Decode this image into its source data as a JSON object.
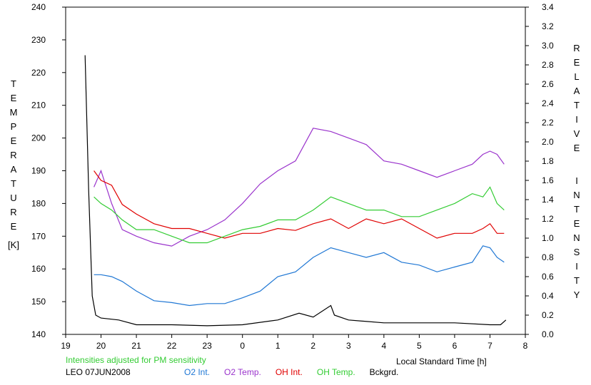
{
  "chart_data": {
    "type": "line",
    "xlabel": "Local Standard Time [h]",
    "ylabel_left_letters": [
      "T",
      "E",
      "M",
      "P",
      "E",
      "R",
      "A",
      "T",
      "U",
      "R",
      "E"
    ],
    "ylabel_left_unit": "[K]",
    "ylabel_right_word1": [
      "R",
      "E",
      "L",
      "A",
      "T",
      "I",
      "V",
      "E"
    ],
    "ylabel_right_word2": [
      "I",
      "N",
      "T",
      "E",
      "N",
      "S",
      "I",
      "T",
      "Y"
    ],
    "x_ticks": [
      "19",
      "20",
      "21",
      "22",
      "23",
      "0",
      "1",
      "2",
      "3",
      "4",
      "5",
      "6",
      "7",
      "8"
    ],
    "y_left_ticks": [
      "140",
      "150",
      "160",
      "170",
      "180",
      "190",
      "200",
      "210",
      "220",
      "230",
      "240"
    ],
    "y_right_ticks": [
      "0.0",
      "0.2",
      "0.4",
      "0.6",
      "0.8",
      "1.0",
      "1.2",
      "1.4",
      "1.6",
      "1.8",
      "2.0",
      "2.2",
      "2.4",
      "2.6",
      "2.8",
      "3.0",
      "3.2",
      "3.4"
    ],
    "xlim": [
      19,
      32
    ],
    "ylim_left": [
      140,
      240
    ],
    "ylim_right": [
      0,
      3.4
    ],
    "grid": false,
    "note": "Intensities adjusted for PM sensitivity",
    "station_date": "LEO 07JUN2008",
    "legend_position": "bottom",
    "series": [
      {
        "name": "O2 Int.",
        "color": "#1f77d4",
        "axis": "right",
        "x": [
          19.8,
          20.0,
          20.3,
          20.6,
          21.0,
          21.5,
          22.0,
          22.5,
          23.0,
          23.5,
          24.0,
          24.5,
          25.0,
          25.5,
          26.0,
          26.5,
          27.0,
          27.5,
          28.0,
          28.5,
          29.0,
          29.5,
          30.0,
          30.5,
          30.8,
          31.0,
          31.2,
          31.4
        ],
        "y": [
          0.62,
          0.62,
          0.6,
          0.55,
          0.45,
          0.35,
          0.33,
          0.3,
          0.32,
          0.32,
          0.38,
          0.45,
          0.6,
          0.65,
          0.8,
          0.9,
          0.85,
          0.8,
          0.85,
          0.75,
          0.72,
          0.65,
          0.7,
          0.75,
          0.92,
          0.9,
          0.8,
          0.75
        ]
      },
      {
        "name": "O2 Temp.",
        "color": "#9a33cc",
        "axis": "left",
        "x": [
          19.8,
          20.0,
          20.3,
          20.6,
          21.0,
          21.5,
          22.0,
          22.5,
          23.0,
          23.5,
          24.0,
          24.5,
          25.0,
          25.5,
          26.0,
          26.5,
          27.0,
          27.5,
          28.0,
          28.5,
          29.0,
          29.5,
          30.0,
          30.5,
          30.8,
          31.0,
          31.2,
          31.4
        ],
        "y": [
          185,
          190,
          180,
          172,
          170,
          168,
          167,
          170,
          172,
          175,
          180,
          186,
          190,
          193,
          203,
          202,
          200,
          198,
          193,
          192,
          190,
          188,
          190,
          192,
          195,
          196,
          195,
          192
        ]
      },
      {
        "name": "OH Int.",
        "color": "#e00000",
        "axis": "right",
        "x": [
          19.8,
          20.0,
          20.3,
          20.6,
          21.0,
          21.5,
          22.0,
          22.5,
          23.0,
          23.5,
          24.0,
          24.5,
          25.0,
          25.5,
          26.0,
          26.5,
          27.0,
          27.5,
          28.0,
          28.5,
          29.0,
          29.5,
          30.0,
          30.5,
          30.8,
          31.0,
          31.2,
          31.4
        ],
        "y": [
          1.7,
          1.6,
          1.55,
          1.35,
          1.25,
          1.15,
          1.1,
          1.1,
          1.05,
          1.0,
          1.05,
          1.05,
          1.1,
          1.08,
          1.15,
          1.2,
          1.1,
          1.2,
          1.15,
          1.2,
          1.1,
          1.0,
          1.05,
          1.05,
          1.1,
          1.15,
          1.05,
          1.05
        ]
      },
      {
        "name": "OH Temp.",
        "color": "#33cc33",
        "axis": "left",
        "x": [
          19.8,
          20.0,
          20.3,
          20.6,
          21.0,
          21.5,
          22.0,
          22.5,
          23.0,
          23.5,
          24.0,
          24.5,
          25.0,
          25.5,
          26.0,
          26.5,
          27.0,
          27.5,
          28.0,
          28.5,
          29.0,
          29.5,
          30.0,
          30.5,
          30.8,
          31.0,
          31.2,
          31.4
        ],
        "y": [
          182,
          180,
          178,
          175,
          172,
          172,
          170,
          168,
          168,
          170,
          172,
          173,
          175,
          175,
          178,
          182,
          180,
          178,
          178,
          176,
          176,
          178,
          180,
          183,
          182,
          185,
          180,
          178
        ]
      },
      {
        "name": "Bckgrd.",
        "color": "#000000",
        "axis": "right",
        "x": [
          19.55,
          19.65,
          19.75,
          19.85,
          20.0,
          20.5,
          21.0,
          22.0,
          23.0,
          24.0,
          25.0,
          25.6,
          26.0,
          26.5,
          26.6,
          27.0,
          28.0,
          29.0,
          30.0,
          31.0,
          31.3,
          31.45
        ],
        "y": [
          2.9,
          1.5,
          0.4,
          0.2,
          0.17,
          0.15,
          0.1,
          0.1,
          0.09,
          0.1,
          0.15,
          0.22,
          0.18,
          0.3,
          0.2,
          0.15,
          0.12,
          0.12,
          0.12,
          0.1,
          0.1,
          0.15
        ]
      }
    ]
  }
}
